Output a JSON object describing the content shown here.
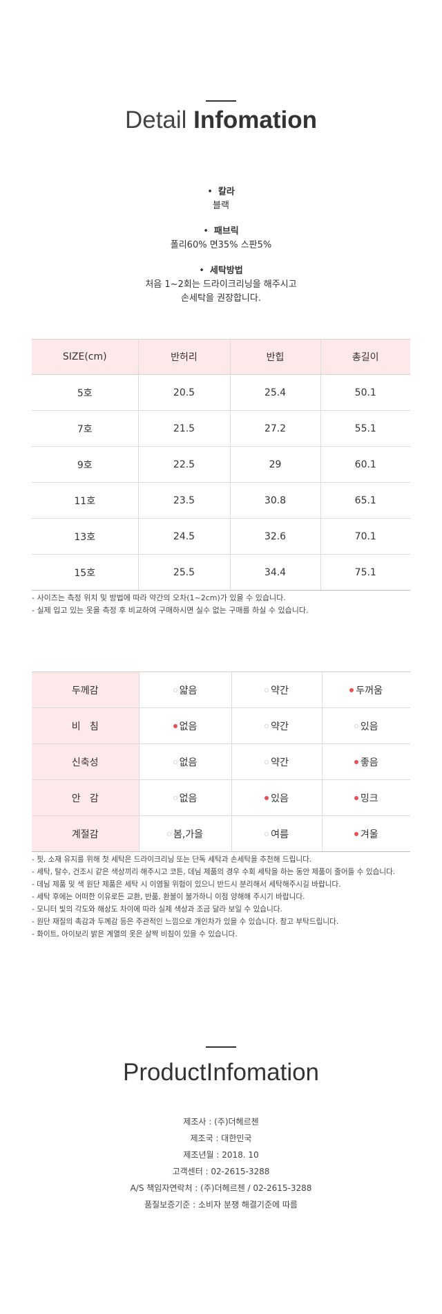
{
  "detail": {
    "title_light": "Detail ",
    "title_bold": "Infomation",
    "specs": [
      {
        "label": "칼라",
        "lines": [
          "블랙"
        ]
      },
      {
        "label": "패브릭",
        "lines": [
          "폴리60% 면35% 스판5%"
        ]
      },
      {
        "label": "세탁방법",
        "lines": [
          "처음 1~2회는 드라이크리닝을 해주시고",
          "손세탁을 권장합니다."
        ]
      }
    ]
  },
  "size_table": {
    "headers": [
      "SIZE(cm)",
      "반허리",
      "반힙",
      "총길이"
    ],
    "rows": [
      [
        "5호",
        "20.5",
        "25.4",
        "50.1"
      ],
      [
        "7호",
        "21.5",
        "27.2",
        "55.1"
      ],
      [
        "9호",
        "22.5",
        "29",
        "60.1"
      ],
      [
        "11호",
        "23.5",
        "30.8",
        "65.1"
      ],
      [
        "13호",
        "24.5",
        "32.6",
        "70.1"
      ],
      [
        "15호",
        "25.5",
        "34.4",
        "75.1"
      ]
    ]
  },
  "size_notes": [
    "- 사이즈는 측정 위치 및 방법에 따라 약간의 오차(1~2cm)가 있을 수 있습니다.",
    "- 실제 입고 있는 옷을 측정 후 비교하여 구매하시면 실수 없는 구매를 하실 수 있습니다."
  ],
  "fabric_table": {
    "rows": [
      {
        "label": "두께감",
        "options": [
          {
            "text": "얇음",
            "selected": false
          },
          {
            "text": "약간",
            "selected": false
          },
          {
            "text": "두꺼움",
            "selected": true
          }
        ]
      },
      {
        "label": "비   침",
        "options": [
          {
            "text": "없음",
            "selected": true
          },
          {
            "text": "약간",
            "selected": false
          },
          {
            "text": "있음",
            "selected": false
          }
        ]
      },
      {
        "label": "신축성",
        "options": [
          {
            "text": "없음",
            "selected": false
          },
          {
            "text": "약간",
            "selected": false
          },
          {
            "text": "좋음",
            "selected": true
          }
        ]
      },
      {
        "label": "안   감",
        "options": [
          {
            "text": "없음",
            "selected": false
          },
          {
            "text": "있음",
            "selected": true
          },
          {
            "text": "밍크",
            "selected": true
          }
        ]
      },
      {
        "label": "계절감",
        "options": [
          {
            "text": "봄,가을",
            "selected": false
          },
          {
            "text": "여름",
            "selected": false
          },
          {
            "text": "겨울",
            "selected": true
          }
        ]
      }
    ]
  },
  "care_notes": [
    "- 핏, 소재 유지를 위해 첫 세탁은 드라이크리닝 또는 단독 세탁과 손세탁을 추천해 드립니다.",
    "- 세탁, 탈수, 건조시 같은 색상끼리 해주시고 코튼, 데님 제품의 경우 수회 세탁을 하는 동안 제품이 줄어들 수 있습니다.",
    "- 데님 제품 및 색 원단 제품은 세탁 시 이염될 위험이 있으니 반드시 분리해서 세탁해주시길 바랍니다.",
    "- 세탁 후에는 어떠한 이유로든 교환, 반품, 환불이 불가하니 이점 양해해 주시기 바랍니다.",
    "- 모니터 빛의 각도와 해상도 차이에 따라 실제 색상과 조금 달라 보일 수 있습니다.",
    "- 원단 재질의 촉감과 두께감 등은 주관적인 느낌으로 개인차가 있을 수 있습니다. 참고 부탁드립니다.",
    "- 화이트, 아이보리 밝은 계열의 옷은 살짝 비침이 있을 수 있습니다."
  ],
  "product": {
    "title": "ProductInfomation",
    "lines": [
      "제조사 : (주)더헤르첸",
      "제조국 : 대한민국",
      "제조년월 : 2018. 10",
      "고객센터 : 02-2615-3288",
      "A/S 책임자연락처 : (주)더헤르첸 / 02-2615-3288",
      "품질보증기준 : 소비자 분쟁 해결기준에 따름"
    ]
  },
  "colors": {
    "header_bg": "#fde9e9",
    "selected_dot": "#e94f52",
    "unselected_dot": "#d8d8d8"
  }
}
